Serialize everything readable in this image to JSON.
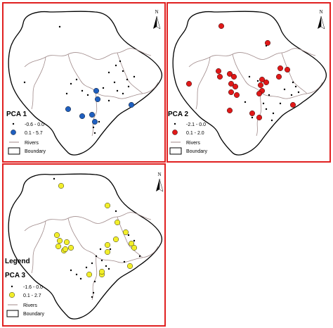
{
  "maps": [
    {
      "id": "pca1",
      "title": "PCA 1",
      "legend_heading": "",
      "north_label": "N",
      "classes": [
        {
          "label": "-0.6 - 0.0",
          "color": "#000000",
          "marker": "small-dot"
        },
        {
          "label": "0.1 - 5.7",
          "color": "#1f5fbf",
          "marker": "large-dot"
        }
      ],
      "rivers_label": "Rivers",
      "boundary_label": "Boundary",
      "high_color": "#1f5fbf"
    },
    {
      "id": "pca2",
      "title": "PCA 2",
      "legend_heading": "",
      "north_label": "N",
      "classes": [
        {
          "label": "-2.1 - 0.0",
          "color": "#000000",
          "marker": "small-dot"
        },
        {
          "label": "0.1 - 2.0",
          "color": "#e01818",
          "marker": "large-dot"
        }
      ],
      "rivers_label": "Rivers",
      "boundary_label": "Boundary",
      "high_color": "#e01818"
    },
    {
      "id": "pca3",
      "title": "PCA 3",
      "legend_heading": "Legend",
      "north_label": "N",
      "classes": [
        {
          "label": "-1.6 - 0.0",
          "color": "#000000",
          "marker": "small-dot"
        },
        {
          "label": "0.1 - 2.7",
          "color": "#f2ee2a",
          "marker": "large-dot"
        }
      ],
      "rivers_label": "Rivers",
      "boundary_label": "Boundary",
      "high_color": "#f2ee2a"
    }
  ],
  "colors": {
    "panel_border": "#e02020",
    "river": "#a08a8a",
    "boundary": "#000000"
  }
}
